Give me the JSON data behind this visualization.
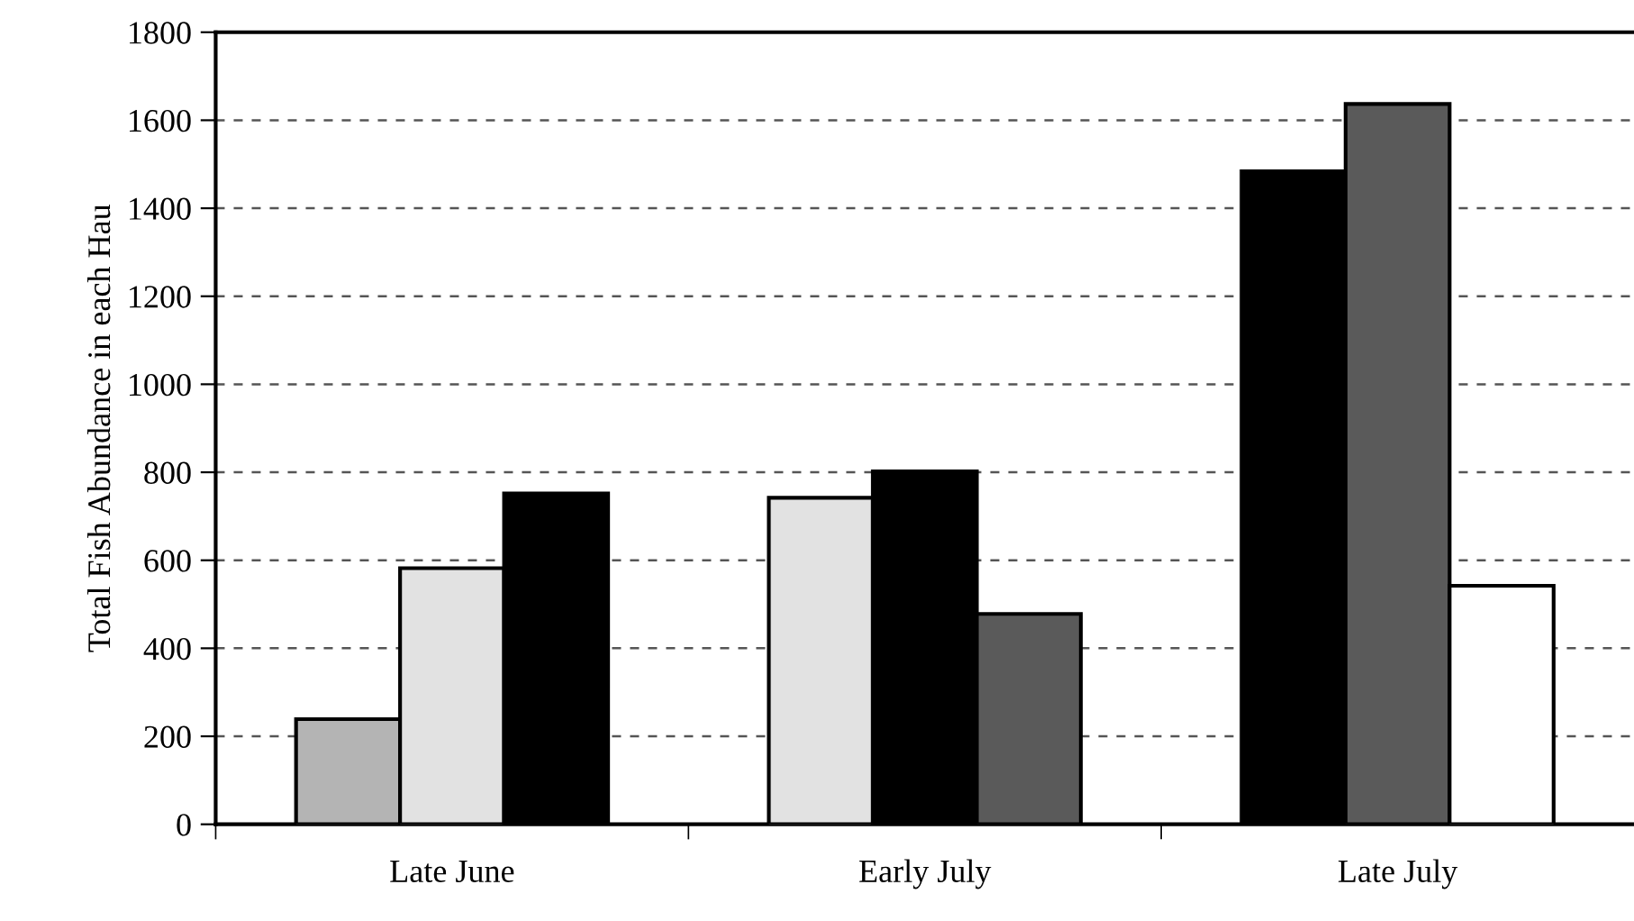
{
  "chart_data": {
    "type": "bar",
    "ylabel": "Total Fish Abundance in each Hau",
    "categories": [
      "Late June",
      "Early July",
      "Late July"
    ],
    "series": [
      {
        "color": "#b4b4b4",
        "values": [
          239,
          null,
          null
        ]
      },
      {
        "color": "#e2e2e2",
        "values": [
          582,
          742,
          null
        ]
      },
      {
        "color": "#000000",
        "values": [
          752,
          802,
          1484
        ]
      },
      {
        "color": "#5a5a5a",
        "values": [
          null,
          478,
          1637
        ]
      },
      {
        "color": "#ffffff",
        "values": [
          null,
          null,
          542
        ]
      }
    ],
    "ylim": [
      0,
      1800
    ],
    "yticks": [
      0,
      200,
      400,
      600,
      800,
      1000,
      1200,
      1400,
      1600,
      1800
    ],
    "grid": "y"
  }
}
